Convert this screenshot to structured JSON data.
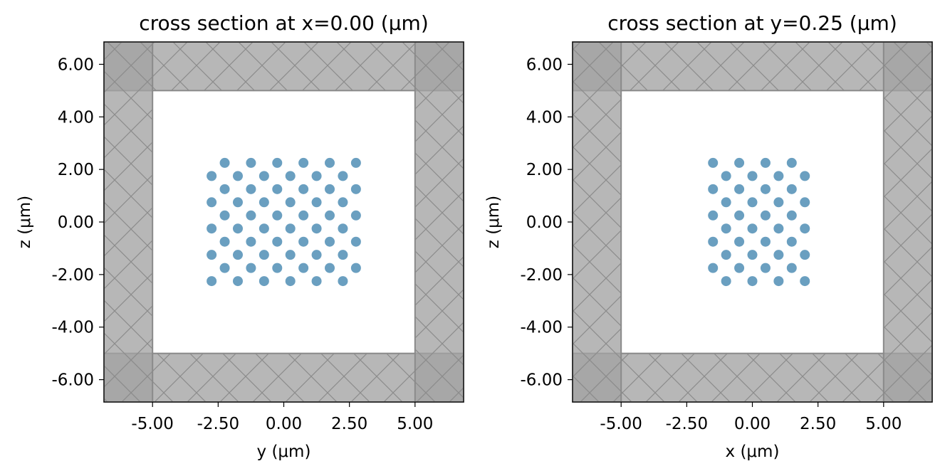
{
  "chart_data": [
    {
      "type": "scatter",
      "title": "cross section at x=0.00 (μm)",
      "xlabel": "y (μm)",
      "ylabel": "z (μm)",
      "xlim": [
        -6.85,
        6.85
      ],
      "ylim": [
        -6.85,
        6.85
      ],
      "xticks": [
        -5,
        -2.5,
        0,
        2.5,
        5
      ],
      "xtick_labels": [
        "-5.00",
        "-2.50",
        "0.00",
        "2.50",
        "5.00"
      ],
      "yticks": [
        6,
        4,
        2,
        0,
        -2,
        -4,
        -6
      ],
      "ytick_labels": [
        "6.00",
        "4.00",
        "2.00",
        "0.00",
        "-2.00",
        "-4.00",
        "-6.00"
      ],
      "grid": false,
      "pml_inner_bound": 5,
      "pml_color": "#a3a3a3",
      "point_color": "#6a9fc0",
      "series": [
        {
          "values": [
            [
              -2.75,
              1.75
            ],
            [
              -1.75,
              1.75
            ],
            [
              -0.75,
              1.75
            ],
            [
              0.25,
              1.75
            ],
            [
              1.25,
              1.75
            ],
            [
              2.25,
              1.75
            ],
            [
              -2.75,
              0.75
            ],
            [
              -1.75,
              0.75
            ],
            [
              -0.75,
              0.75
            ],
            [
              0.25,
              0.75
            ],
            [
              1.25,
              0.75
            ],
            [
              2.25,
              0.75
            ],
            [
              -2.75,
              -0.25
            ],
            [
              -1.75,
              -0.25
            ],
            [
              -0.75,
              -0.25
            ],
            [
              0.25,
              -0.25
            ],
            [
              1.25,
              -0.25
            ],
            [
              2.25,
              -0.25
            ],
            [
              -2.75,
              -1.25
            ],
            [
              -1.75,
              -1.25
            ],
            [
              -0.75,
              -1.25
            ],
            [
              0.25,
              -1.25
            ],
            [
              1.25,
              -1.25
            ],
            [
              2.25,
              -1.25
            ],
            [
              -2.75,
              -2.25
            ],
            [
              -1.75,
              -2.25
            ],
            [
              -0.75,
              -2.25
            ],
            [
              0.25,
              -2.25
            ],
            [
              1.25,
              -2.25
            ],
            [
              2.25,
              -2.25
            ],
            [
              -2.25,
              2.25
            ],
            [
              -1.25,
              2.25
            ],
            [
              -0.25,
              2.25
            ],
            [
              0.75,
              2.25
            ],
            [
              1.75,
              2.25
            ],
            [
              2.75,
              2.25
            ],
            [
              -2.25,
              1.25
            ],
            [
              -1.25,
              1.25
            ],
            [
              -0.25,
              1.25
            ],
            [
              0.75,
              1.25
            ],
            [
              1.75,
              1.25
            ],
            [
              2.75,
              1.25
            ],
            [
              -2.25,
              0.25
            ],
            [
              -1.25,
              0.25
            ],
            [
              -0.25,
              0.25
            ],
            [
              0.75,
              0.25
            ],
            [
              1.75,
              0.25
            ],
            [
              2.75,
              0.25
            ],
            [
              -2.25,
              -0.75
            ],
            [
              -1.25,
              -0.75
            ],
            [
              -0.25,
              -0.75
            ],
            [
              0.75,
              -0.75
            ],
            [
              1.75,
              -0.75
            ],
            [
              2.75,
              -0.75
            ],
            [
              -2.25,
              -1.75
            ],
            [
              -1.25,
              -1.75
            ],
            [
              -0.25,
              -1.75
            ],
            [
              0.75,
              -1.75
            ],
            [
              1.75,
              -1.75
            ],
            [
              2.75,
              -1.75
            ]
          ]
        }
      ]
    },
    {
      "type": "scatter",
      "title": "cross section at y=0.25 (μm)",
      "xlabel": "x (μm)",
      "ylabel": "z (μm)",
      "xlim": [
        -6.85,
        6.85
      ],
      "ylim": [
        -6.85,
        6.85
      ],
      "xticks": [
        -5,
        -2.5,
        0,
        2.5,
        5
      ],
      "xtick_labels": [
        "-5.00",
        "-2.50",
        "0.00",
        "2.50",
        "5.00"
      ],
      "yticks": [
        6,
        4,
        2,
        0,
        -2,
        -4,
        -6
      ],
      "ytick_labels": [
        "6.00",
        "4.00",
        "2.00",
        "0.00",
        "-2.00",
        "-4.00",
        "-6.00"
      ],
      "grid": false,
      "pml_inner_bound": 5,
      "pml_color": "#a3a3a3",
      "point_color": "#6a9fc0",
      "series": [
        {
          "values": [
            [
              -1.5,
              2.25
            ],
            [
              -0.5,
              2.25
            ],
            [
              0.5,
              2.25
            ],
            [
              1.5,
              2.25
            ],
            [
              -1.0,
              1.75
            ],
            [
              0.0,
              1.75
            ],
            [
              1.0,
              1.75
            ],
            [
              2.0,
              1.75
            ],
            [
              -1.5,
              1.25
            ],
            [
              -0.5,
              1.25
            ],
            [
              0.5,
              1.25
            ],
            [
              1.5,
              1.25
            ],
            [
              -1.0,
              0.75
            ],
            [
              0.0,
              0.75
            ],
            [
              1.0,
              0.75
            ],
            [
              2.0,
              0.75
            ],
            [
              -1.5,
              0.25
            ],
            [
              -0.5,
              0.25
            ],
            [
              0.5,
              0.25
            ],
            [
              1.5,
              0.25
            ],
            [
              -1.0,
              -0.25
            ],
            [
              0.0,
              -0.25
            ],
            [
              1.0,
              -0.25
            ],
            [
              2.0,
              -0.25
            ],
            [
              -1.5,
              -0.75
            ],
            [
              -0.5,
              -0.75
            ],
            [
              0.5,
              -0.75
            ],
            [
              1.5,
              -0.75
            ],
            [
              -1.0,
              -1.25
            ],
            [
              0.0,
              -1.25
            ],
            [
              1.0,
              -1.25
            ],
            [
              2.0,
              -1.25
            ],
            [
              -1.5,
              -1.75
            ],
            [
              -0.5,
              -1.75
            ],
            [
              0.5,
              -1.75
            ],
            [
              1.5,
              -1.75
            ],
            [
              -1.0,
              -2.25
            ],
            [
              0.0,
              -2.25
            ],
            [
              1.0,
              -2.25
            ],
            [
              2.0,
              -2.25
            ]
          ]
        }
      ]
    }
  ]
}
